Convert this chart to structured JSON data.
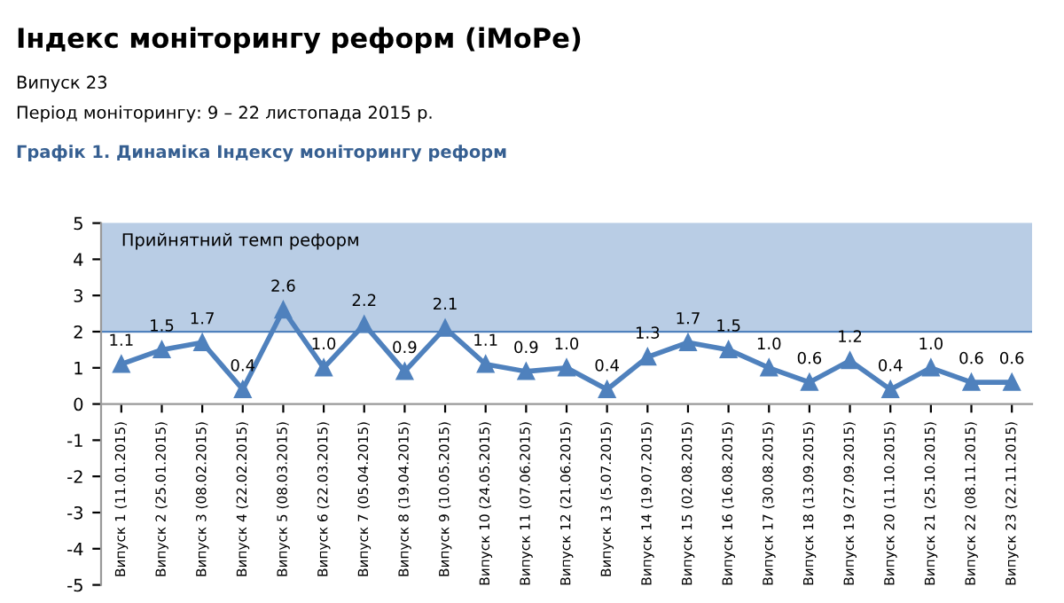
{
  "chart_data": {
    "type": "line",
    "title": "Індекс моніторингу реформ (iMoPe)",
    "subtitle": "Графік 1. Динаміка Індексу моніторингу реформ",
    "annotations": [
      "Випуск 23",
      "Період моніторингу: 9 – 22 листопада 2015 р."
    ],
    "categories": [
      "Випуск 1 (11.01.2015)",
      "Випуск 2 (25.01.2015)",
      "Випуск 3 (08.02.2015)",
      "Випуск 4 (22.02.2015)",
      "Випуск 5 (08.03.2015)",
      "Випуск 6 (22.03.2015)",
      "Випуск 7 (05.04.2015)",
      "Випуск 8 (19.04.2015)",
      "Випуск 9 (10.05.2015)",
      "Випуск 10 (24.05.2015)",
      "Випуск 11 (07.06.2015)",
      "Випуск 12 (21.06.2015)",
      "Випуск 13 (5.07.2015)",
      "Випуск 14 (19.07.2015)",
      "Випуск 15 (02.08.2015)",
      "Випуск 16 (16.08.2015)",
      "Випуск 17 (30.08.2015)",
      "Випуск 18 (13.09.2015)",
      "Випуск 19 (27.09.2015)",
      "Випуск 20 (11.10.2015)",
      "Випуск 21 (25.10.2015)",
      "Випуск 22 (08.11.2015)",
      "Випуск 23 (22.11.2015)"
    ],
    "series": [
      {
        "color": "#4f81bd",
        "values": [
          1.1,
          1.5,
          1.7,
          0.4,
          2.6,
          1.0,
          2.2,
          0.9,
          2.1,
          1.1,
          0.9,
          1.0,
          0.4,
          1.3,
          1.7,
          1.5,
          1.0,
          0.6,
          1.2,
          0.4,
          1.0,
          0.6,
          0.6
        ],
        "value_labels": [
          "1.1",
          "1.5",
          "1.7",
          "0.4",
          "2.6",
          "1.0",
          "2.2",
          "0.9",
          "2.1",
          "1.1",
          "0.9",
          "1.0",
          "0.4",
          "1.3",
          "1.7",
          "1.5",
          "1.0",
          "0.6",
          "1.2",
          "0.4",
          "1.0",
          "0.6",
          "0.6"
        ]
      }
    ],
    "ref_lines": [
      {
        "axis": "y",
        "value": 2,
        "color": "#4f81bd"
      }
    ],
    "bands": [
      {
        "axis": "y",
        "from": 2,
        "to": 5,
        "label": "Прийнятний темп реформ",
        "color": "#b9cde5"
      }
    ],
    "ylim": [
      -5,
      5
    ],
    "yticks": [
      -5,
      -4,
      -3,
      -2,
      -1,
      0,
      1,
      2,
      3,
      4,
      5
    ],
    "grid": false,
    "marker": "triangle",
    "line_style": "solid"
  }
}
